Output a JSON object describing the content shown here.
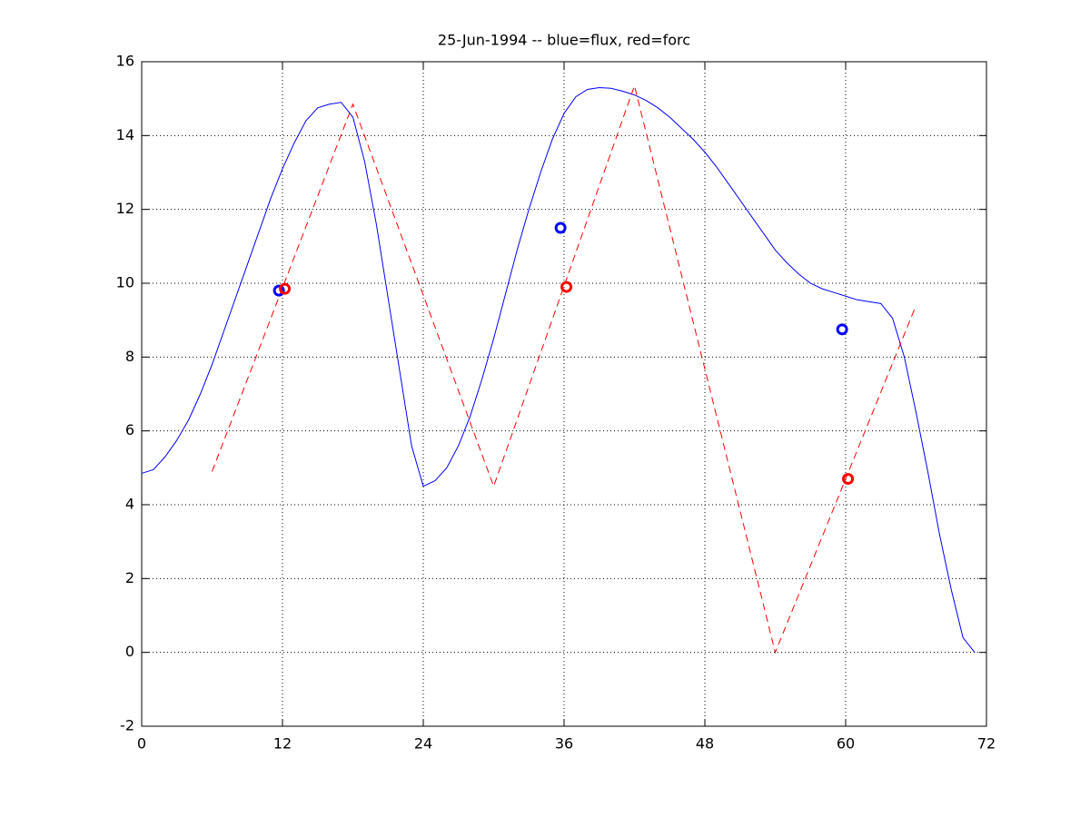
{
  "chart_data": {
    "type": "line",
    "title": "25-Jun-1994 -- blue=flux, red=forc",
    "xlim": [
      0,
      72
    ],
    "xticks": [
      0,
      12,
      24,
      36,
      48,
      60,
      72
    ],
    "ylim": [
      -2,
      16
    ],
    "yticks": [
      -2,
      0,
      2,
      4,
      6,
      8,
      10,
      12,
      14,
      16
    ],
    "grid": true,
    "series": [
      {
        "color": "#0000ff",
        "style": "solid",
        "x": [
          0,
          1,
          2,
          3,
          4,
          5,
          6,
          7,
          8,
          9,
          10,
          11,
          12,
          13,
          14,
          15,
          16,
          17,
          18,
          19,
          20,
          21,
          22,
          23,
          24,
          25,
          26,
          27,
          28,
          29,
          30,
          31,
          32,
          33,
          34,
          35,
          36,
          37,
          38,
          39,
          40,
          41,
          42,
          43,
          44,
          45,
          46,
          47,
          48,
          49,
          50,
          51,
          52,
          53,
          54,
          55,
          56,
          57,
          58,
          59,
          60,
          61,
          62,
          63,
          64,
          65,
          66,
          67,
          68,
          69,
          70,
          71
        ],
        "values": [
          4.85,
          4.95,
          5.3,
          5.75,
          6.3,
          7.0,
          7.8,
          8.7,
          9.6,
          10.5,
          11.4,
          12.3,
          13.1,
          13.8,
          14.4,
          14.75,
          14.85,
          14.9,
          14.5,
          13.3,
          11.6,
          9.6,
          7.6,
          5.6,
          4.5,
          4.65,
          5.0,
          5.6,
          6.4,
          7.4,
          8.5,
          9.7,
          10.9,
          12.0,
          13.0,
          13.9,
          14.6,
          15.05,
          15.25,
          15.3,
          15.28,
          15.2,
          15.1,
          14.95,
          14.75,
          14.5,
          14.2,
          13.9,
          13.55,
          13.15,
          12.7,
          12.25,
          11.8,
          11.35,
          10.9,
          10.55,
          10.25,
          10.0,
          9.85,
          9.75,
          9.65,
          9.55,
          9.5,
          9.45,
          9.05,
          8.0,
          6.5,
          4.9,
          3.2,
          1.7,
          0.4,
          0
        ]
      },
      {
        "color": "#ff0000",
        "style": "dashed",
        "x": [
          6,
          18,
          30,
          42,
          54,
          66
        ],
        "values": [
          4.9,
          14.85,
          4.5,
          15.35,
          0,
          9.4
        ]
      },
      {
        "color": "#0000ff",
        "style": "markers",
        "x": [
          11.7,
          35.7,
          59.7
        ],
        "values": [
          9.8,
          11.5,
          8.75
        ]
      },
      {
        "color": "#ff0000",
        "style": "markers",
        "x": [
          12.2,
          36.2,
          60.2
        ],
        "values": [
          9.85,
          9.9,
          4.7
        ]
      }
    ]
  }
}
